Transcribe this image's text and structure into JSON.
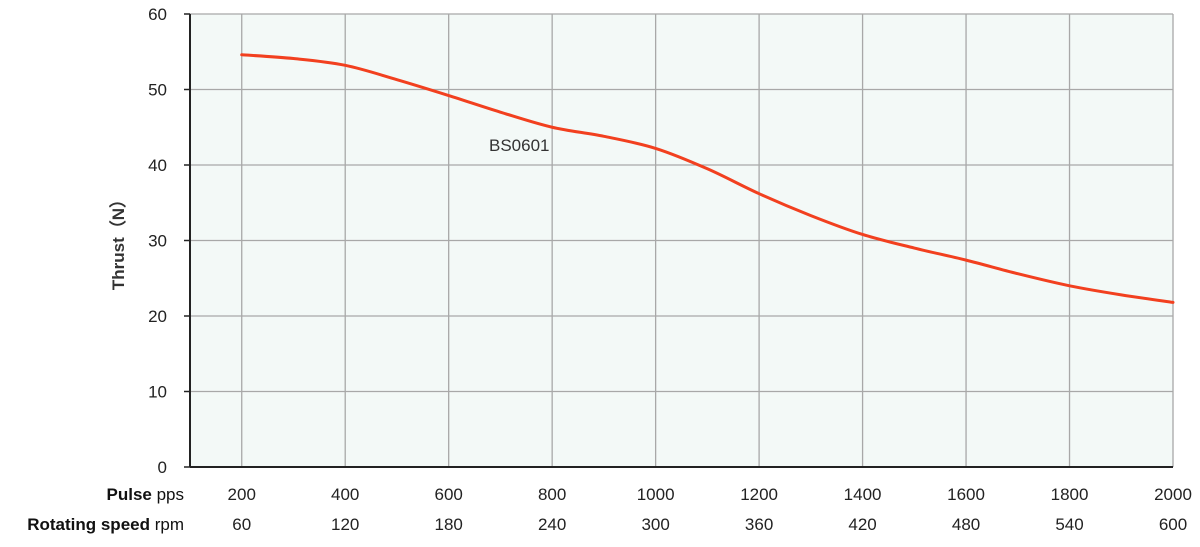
{
  "chart_data": {
    "type": "line",
    "ylabel": "Thrust（N）",
    "ylim": [
      0,
      60
    ],
    "yticks": [
      "0",
      "10",
      "20",
      "30",
      "40",
      "50",
      "60"
    ],
    "x_rows": [
      {
        "label_bold": "Pulse",
        "unit": "pps",
        "ticks": [
          "200",
          "400",
          "600",
          "800",
          "1000",
          "1200",
          "1400",
          "1600",
          "1800",
          "2000"
        ]
      },
      {
        "label_bold": "Rotating speed",
        "unit": "rpm",
        "ticks": [
          "60",
          "120",
          "180",
          "240",
          "300",
          "360",
          "420",
          "480",
          "540",
          "600"
        ]
      }
    ],
    "xlim": [
      100,
      2000
    ],
    "grid": true,
    "plot_background": "#f3f9f7",
    "series": [
      {
        "name": "BS0601",
        "color": "#f2401f",
        "x": [
          200,
          300,
          400,
          500,
          600,
          700,
          800,
          900,
          1000,
          1100,
          1200,
          1300,
          1400,
          1500,
          1600,
          1700,
          1800,
          1900,
          2000
        ],
        "y": [
          54.6,
          54.1,
          53.2,
          51.3,
          49.2,
          47.0,
          45.0,
          43.8,
          42.2,
          39.5,
          36.2,
          33.3,
          30.8,
          29.0,
          27.4,
          25.6,
          24.0,
          22.8,
          21.8
        ]
      }
    ]
  }
}
